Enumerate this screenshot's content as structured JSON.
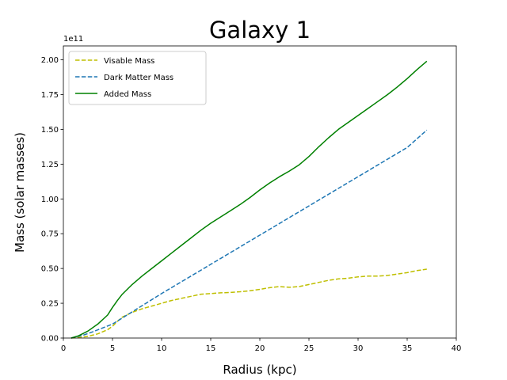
{
  "chart_data": {
    "type": "line",
    "title": "Galaxy 1",
    "xlabel": "Radius (kpc)",
    "ylabel": "Mass (solar masses)",
    "y_offset_label": "1e11",
    "xlim": [
      0,
      40
    ],
    "ylim": [
      0,
      2.1
    ],
    "y_scale_note": "values in units of 1e11 solar masses",
    "x_ticks": [
      "0",
      "5",
      "10",
      "15",
      "20",
      "25",
      "30",
      "35",
      "40"
    ],
    "y_ticks": [
      "0.00",
      "0.25",
      "0.50",
      "0.75",
      "1.00",
      "1.25",
      "1.50",
      "1.75",
      "2.00"
    ],
    "grid": false,
    "legend_position": "upper-left",
    "series": [
      {
        "name": "Visable Mass",
        "color": "#bfbf00",
        "dash": "dashed",
        "x": [
          0.8,
          1.5,
          2.5,
          3.5,
          4.5,
          5.0,
          5.5,
          6.0,
          7.0,
          8.0,
          9.0,
          10.0,
          11.0,
          12.0,
          13.0,
          14.0,
          15.0,
          16.0,
          17.0,
          18.0,
          19.0,
          20.0,
          21.0,
          22.0,
          23.0,
          24.0,
          25.0,
          26.0,
          27.0,
          28.0,
          29.0,
          30.0,
          31.0,
          32.0,
          33.0,
          34.0,
          35.0,
          36.0,
          37.0
        ],
        "y": [
          0.0,
          0.003,
          0.012,
          0.03,
          0.06,
          0.085,
          0.12,
          0.15,
          0.185,
          0.21,
          0.23,
          0.25,
          0.27,
          0.285,
          0.3,
          0.315,
          0.32,
          0.325,
          0.328,
          0.333,
          0.34,
          0.35,
          0.362,
          0.37,
          0.365,
          0.37,
          0.385,
          0.4,
          0.415,
          0.425,
          0.43,
          0.44,
          0.445,
          0.445,
          0.45,
          0.46,
          0.47,
          0.485,
          0.495
        ]
      },
      {
        "name": "Dark Matter Mass",
        "color": "#1f77b4",
        "dash": "dashed",
        "x": [
          0.8,
          2.0,
          3.0,
          5.0,
          10.0,
          15.0,
          20.0,
          25.0,
          30.0,
          35.0,
          37.0
        ],
        "y": [
          0.0,
          0.02,
          0.045,
          0.1,
          0.32,
          0.53,
          0.74,
          0.95,
          1.16,
          1.37,
          1.495
        ]
      },
      {
        "name": "Added Mass",
        "color": "#008000",
        "dash": "solid",
        "x": [
          0.8,
          1.5,
          2.5,
          3.5,
          4.5,
          5.0,
          5.5,
          6.0,
          7.0,
          8.0,
          9.0,
          10.0,
          11.0,
          12.0,
          13.0,
          14.0,
          15.0,
          16.0,
          17.0,
          18.0,
          19.0,
          20.0,
          21.0,
          22.0,
          23.0,
          24.0,
          25.0,
          26.0,
          27.0,
          28.0,
          29.0,
          30.0,
          31.0,
          32.0,
          33.0,
          34.0,
          35.0,
          36.0,
          37.0
        ],
        "y": [
          0.0,
          0.015,
          0.05,
          0.1,
          0.165,
          0.22,
          0.27,
          0.315,
          0.385,
          0.445,
          0.5,
          0.555,
          0.61,
          0.665,
          0.72,
          0.775,
          0.825,
          0.87,
          0.915,
          0.96,
          1.01,
          1.065,
          1.115,
          1.16,
          1.2,
          1.245,
          1.305,
          1.375,
          1.44,
          1.5,
          1.55,
          1.6,
          1.65,
          1.7,
          1.75,
          1.805,
          1.865,
          1.93,
          1.99
        ]
      }
    ]
  }
}
